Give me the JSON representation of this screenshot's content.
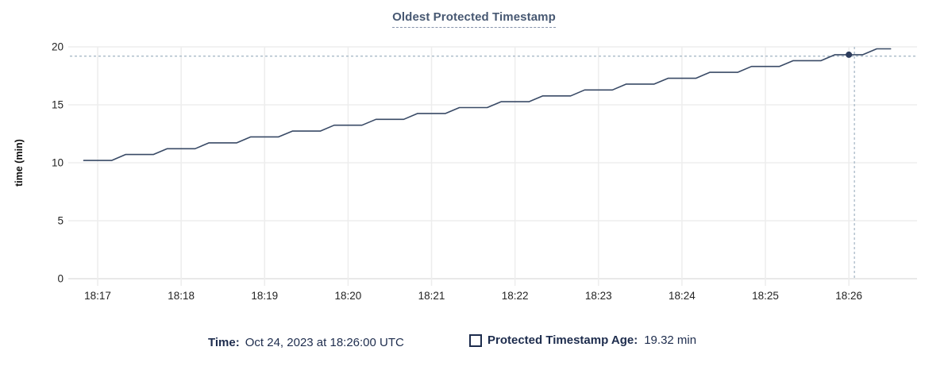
{
  "colors": {
    "line": "#394a66",
    "marker": "#2c3c5c",
    "crosshair": "#a9bac8",
    "grid": "#ededed",
    "axis_line": "#e2e2e2",
    "tick_text": "#242424",
    "title_text": "#475872",
    "footer_text": "#1d2c4d",
    "background": "#ffffff"
  },
  "footer": {
    "time_label": "Time:",
    "time_value": "Oct 24, 2023 at 18:26:00 UTC",
    "series_label": "Protected Timestamp Age:",
    "series_value": "19.32 min"
  },
  "chart_data": {
    "type": "line",
    "title": "Oldest Protected Timestamp",
    "xlabel": "",
    "ylabel": "time (min)",
    "ylim": [
      0,
      20
    ],
    "y_ticks": [
      0,
      5,
      10,
      15,
      20
    ],
    "x_ticks": [
      "18:17",
      "18:18",
      "18:19",
      "18:20",
      "18:21",
      "18:22",
      "18:23",
      "18:24",
      "18:25",
      "18:26"
    ],
    "x_domain": [
      "18:16:40",
      "18:26:49"
    ],
    "grid": true,
    "legend_position": "bottom",
    "series": [
      {
        "name": "Protected Timestamp Age",
        "unit": "min",
        "points": [
          [
            "18:16:50",
            10.2
          ],
          [
            "18:17:10",
            10.2
          ],
          [
            "18:17:20",
            10.71
          ],
          [
            "18:17:40",
            10.71
          ],
          [
            "18:17:50",
            11.21
          ],
          [
            "18:18:10",
            11.21
          ],
          [
            "18:18:20",
            11.72
          ],
          [
            "18:18:40",
            11.72
          ],
          [
            "18:18:50",
            12.23
          ],
          [
            "18:19:10",
            12.23
          ],
          [
            "18:19:20",
            12.73
          ],
          [
            "18:19:40",
            12.73
          ],
          [
            "18:19:50",
            13.24
          ],
          [
            "18:20:10",
            13.24
          ],
          [
            "18:20:20",
            13.75
          ],
          [
            "18:20:40",
            13.75
          ],
          [
            "18:20:50",
            14.25
          ],
          [
            "18:21:10",
            14.25
          ],
          [
            "18:21:20",
            14.76
          ],
          [
            "18:21:40",
            14.76
          ],
          [
            "18:21:50",
            15.27
          ],
          [
            "18:22:10",
            15.27
          ],
          [
            "18:22:20",
            15.77
          ],
          [
            "18:22:40",
            15.77
          ],
          [
            "18:22:50",
            16.28
          ],
          [
            "18:23:10",
            16.28
          ],
          [
            "18:23:20",
            16.79
          ],
          [
            "18:23:40",
            16.79
          ],
          [
            "18:23:50",
            17.29
          ],
          [
            "18:24:10",
            17.29
          ],
          [
            "18:24:20",
            17.8
          ],
          [
            "18:24:40",
            17.8
          ],
          [
            "18:24:50",
            18.31
          ],
          [
            "18:25:10",
            18.31
          ],
          [
            "18:25:20",
            18.81
          ],
          [
            "18:25:40",
            18.81
          ],
          [
            "18:25:50",
            19.32
          ],
          [
            "18:26:10",
            19.32
          ],
          [
            "18:26:20",
            19.83
          ],
          [
            "18:26:30",
            19.83
          ]
        ]
      }
    ],
    "highlight": {
      "time": "18:26:00",
      "value": 19.32
    },
    "crosshair": {
      "time": "18:26:04",
      "value": 19.2
    }
  }
}
